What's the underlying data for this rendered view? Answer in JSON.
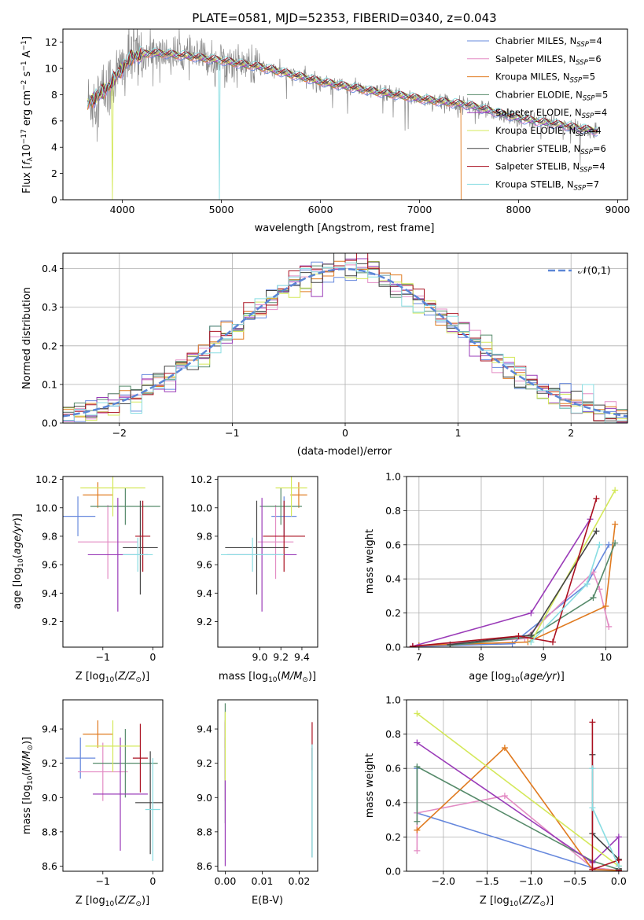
{
  "colors": {
    "Chabrier MILES": "#6688dd",
    "Salpeter MILES": "#e38cc4",
    "Kroupa MILES": "#e07a1f",
    "Chabrier ELODIE": "#568a6a",
    "Salpeter ELODIE": "#9a3bb8",
    "Kroupa ELODIE": "#d4e85a",
    "Chabrier STELIB": "#444444",
    "Salpeter STELIB": "#aa1020",
    "Kroupa STELIB": "#88dde2",
    "data": "#888888",
    "normal": "#5b86d6"
  },
  "chart_data": [
    {
      "id": "spectrum",
      "type": "line",
      "title": "PLATE=0581, MJD=52353, FIBERID=0340, z=0.043",
      "xlabel": "wavelength [Angstrom, rest frame]",
      "ylabel": "Flux [f_λ10^-17 erg cm^-2 s^-1 A^-1]",
      "xlim": [
        3400,
        9100
      ],
      "ylim": [
        0,
        13
      ],
      "xticks": [
        4000,
        5000,
        6000,
        7000,
        8000,
        9000
      ],
      "yticks": [
        0,
        2,
        4,
        6,
        8,
        10,
        12
      ],
      "legend": "top-right",
      "legend_entries": [
        {
          "label": "Chabrier MILES, N",
          "sub": "SSP",
          "tail": "=4",
          "model": "Chabrier MILES"
        },
        {
          "label": "Salpeter MILES, N",
          "sub": "SSP",
          "tail": "=6",
          "model": "Salpeter MILES"
        },
        {
          "label": "Kroupa MILES, N",
          "sub": "SSP",
          "tail": "=5",
          "model": "Kroupa MILES"
        },
        {
          "label": "Chabrier ELODIE, N",
          "sub": "SSP",
          "tail": "=5",
          "model": "Chabrier ELODIE"
        },
        {
          "label": "Salpeter ELODIE, N",
          "sub": "SSP",
          "tail": "=4",
          "model": "Salpeter ELODIE"
        },
        {
          "label": "Kroupa ELODIE, N",
          "sub": "SSP",
          "tail": "=4",
          "model": "Kroupa ELODIE"
        },
        {
          "label": "Chabrier STELIB, N",
          "sub": "SSP",
          "tail": "=6",
          "model": "Chabrier STELIB"
        },
        {
          "label": "Salpeter STELIB, N",
          "sub": "SSP",
          "tail": "=4",
          "model": "Salpeter STELIB"
        },
        {
          "label": "Kroupa STELIB, N",
          "sub": "SSP",
          "tail": "=7",
          "model": "Kroupa STELIB"
        }
      ],
      "continuum": [
        [
          3650,
          7.3
        ],
        [
          3850,
          8.5
        ],
        [
          4000,
          10.0
        ],
        [
          4100,
          10.9
        ],
        [
          4300,
          11.2
        ],
        [
          4600,
          11.0
        ],
        [
          5000,
          10.6
        ],
        [
          5400,
          10.1
        ],
        [
          6000,
          9.0
        ],
        [
          6500,
          8.3
        ],
        [
          7000,
          7.7
        ],
        [
          7500,
          7.2
        ],
        [
          8000,
          6.2
        ],
        [
          8500,
          5.6
        ],
        [
          8800,
          5.2
        ]
      ],
      "drops": [
        {
          "x": 3900,
          "to": 0,
          "model": "Kroupa ELODIE"
        },
        {
          "x": 4980,
          "to": 0,
          "model": "Kroupa STELIB"
        },
        {
          "x": 6800,
          "to": 0,
          "model": "Kroupa ELODIE"
        },
        {
          "x": 7420,
          "to": 0,
          "model": "Kroupa MILES"
        }
      ]
    },
    {
      "id": "residuals",
      "type": "line",
      "xlabel": "(data-model)/error",
      "ylabel": "Normed distribution",
      "xlim": [
        -2.5,
        2.5
      ],
      "ylim": [
        0,
        0.44
      ],
      "xticks": [
        -2,
        -1,
        0,
        1,
        2
      ],
      "yticks": [
        0.0,
        0.1,
        0.2,
        0.3,
        0.4
      ],
      "grid": true,
      "legend": "top-right",
      "legend_label": "𝒩(0,1)",
      "bin_width": 0.1
    },
    {
      "id": "age-vs-z",
      "type": "scatter",
      "xlabel": "Z [log10(Z/Z⊙)]",
      "ylabel": "age [log10(age/yr)]",
      "xlim": [
        -1.8,
        0.2
      ],
      "ylim": [
        9.02,
        10.22
      ],
      "xticks": [
        -1,
        0
      ],
      "yticks": [
        9.2,
        9.4,
        9.6,
        9.8,
        10.0,
        10.2
      ],
      "points": [
        {
          "model": "Chabrier MILES",
          "x": -1.5,
          "xerr": 0.35,
          "y": 9.94,
          "yerr": 0.14
        },
        {
          "model": "Salpeter MILES",
          "x": -0.9,
          "xerr": 0.6,
          "y": 9.76,
          "yerr": 0.26
        },
        {
          "model": "Kroupa MILES",
          "x": -1.1,
          "xerr": 0.3,
          "y": 10.09,
          "yerr": 0.09
        },
        {
          "model": "Chabrier ELODIE",
          "x": -0.55,
          "xerr": 0.7,
          "y": 10.01,
          "yerr": 0.13
        },
        {
          "model": "Salpeter ELODIE",
          "x": -0.7,
          "xerr": 0.6,
          "y": 9.67,
          "yerr": 0.4
        },
        {
          "model": "Kroupa ELODIE",
          "x": -0.8,
          "xerr": 0.65,
          "y": 10.14,
          "yerr": 0.2
        },
        {
          "model": "Chabrier STELIB",
          "x": -0.25,
          "xerr": 0.35,
          "y": 9.72,
          "yerr": 0.33
        },
        {
          "model": "Salpeter STELIB",
          "x": -0.2,
          "xerr": 0.15,
          "y": 9.8,
          "yerr": 0.25
        },
        {
          "model": "Kroupa STELIB",
          "x": -0.3,
          "xerr": 0.3,
          "y": 9.67,
          "yerr": 0.12
        }
      ]
    },
    {
      "id": "age-vs-mass",
      "type": "scatter",
      "xlabel": "mass [log10(M/M⊙)]",
      "ylabel": "",
      "xlim": [
        8.6,
        9.55
      ],
      "ylim": [
        9.02,
        10.22
      ],
      "xticks": [
        9.0,
        9.2,
        9.4
      ],
      "yticks": [
        9.2,
        9.4,
        9.6,
        9.8,
        10.0,
        10.2
      ],
      "points": [
        {
          "model": "Chabrier MILES",
          "x": 9.23,
          "xerr": 0.12,
          "y": 9.94,
          "yerr": 0.14
        },
        {
          "model": "Salpeter MILES",
          "x": 9.15,
          "xerr": 0.17,
          "y": 9.76,
          "yerr": 0.26
        },
        {
          "model": "Kroupa MILES",
          "x": 9.37,
          "xerr": 0.08,
          "y": 10.09,
          "yerr": 0.09
        },
        {
          "model": "Chabrier ELODIE",
          "x": 9.2,
          "xerr": 0.2,
          "y": 10.01,
          "yerr": 0.13
        },
        {
          "model": "Salpeter ELODIE",
          "x": 9.02,
          "xerr": 0.33,
          "y": 9.67,
          "yerr": 0.4
        },
        {
          "model": "Kroupa ELODIE",
          "x": 9.3,
          "xerr": 0.15,
          "y": 10.14,
          "yerr": 0.2
        },
        {
          "model": "Chabrier STELIB",
          "x": 8.97,
          "xerr": 0.3,
          "y": 9.72,
          "yerr": 0.33
        },
        {
          "model": "Salpeter STELIB",
          "x": 9.23,
          "xerr": 0.2,
          "y": 9.8,
          "yerr": 0.25
        },
        {
          "model": "Kroupa STELIB",
          "x": 8.93,
          "xerr": 0.3,
          "y": 9.67,
          "yerr": 0.12
        }
      ]
    },
    {
      "id": "mass-weight-vs-age",
      "type": "line",
      "xlabel": "age [log10(age/yr)]",
      "ylabel": "mass weight",
      "xlim": [
        6.8,
        10.35
      ],
      "ylim": [
        0,
        1.0
      ],
      "xticks": [
        7,
        8,
        9,
        10
      ],
      "yticks": [
        0.0,
        0.2,
        0.4,
        0.6,
        0.8,
        1.0
      ],
      "grid": true,
      "series": [
        {
          "model": "Chabrier MILES",
          "points": [
            [
              7.0,
              0.005
            ],
            [
              8.5,
              0.02
            ],
            [
              9.7,
              0.37
            ],
            [
              10.05,
              0.6
            ]
          ]
        },
        {
          "model": "Salpeter MILES",
          "points": [
            [
              6.9,
              0.005
            ],
            [
              8.7,
              0.05
            ],
            [
              9.8,
              0.44
            ],
            [
              9.9,
              0.34
            ],
            [
              10.05,
              0.12
            ]
          ]
        },
        {
          "model": "Kroupa MILES",
          "points": [
            [
              7.0,
              0.01
            ],
            [
              8.75,
              0.03
            ],
            [
              10.0,
              0.24
            ],
            [
              10.15,
              0.72
            ]
          ]
        },
        {
          "model": "Chabrier ELODIE",
          "points": [
            [
              7.5,
              0.01
            ],
            [
              8.8,
              0.06
            ],
            [
              9.8,
              0.29
            ],
            [
              10.15,
              0.61
            ]
          ]
        },
        {
          "model": "Salpeter ELODIE",
          "points": [
            [
              6.9,
              0.005
            ],
            [
              8.8,
              0.2
            ],
            [
              9.75,
              0.75
            ]
          ]
        },
        {
          "model": "Kroupa ELODIE",
          "points": [
            [
              8.8,
              0.03
            ],
            [
              10.15,
              0.92
            ]
          ]
        },
        {
          "model": "Chabrier STELIB",
          "points": [
            [
              7.5,
              0.015
            ],
            [
              8.8,
              0.07
            ],
            [
              9.85,
              0.68
            ]
          ]
        },
        {
          "model": "Salpeter STELIB",
          "points": [
            [
              6.9,
              0.005
            ],
            [
              8.6,
              0.065
            ],
            [
              9.15,
              0.03
            ],
            [
              9.85,
              0.87
            ]
          ]
        },
        {
          "model": "Kroupa STELIB",
          "points": [
            [
              8.8,
              0.03
            ],
            [
              9.7,
              0.37
            ],
            [
              9.9,
              0.6
            ]
          ]
        }
      ]
    },
    {
      "id": "mass-vs-z",
      "type": "scatter",
      "xlabel": "Z [log10(Z/Z⊙)]",
      "ylabel": "mass [log10(M/M⊙)]",
      "xlim": [
        -1.8,
        0.2
      ],
      "ylim": [
        8.57,
        9.57
      ],
      "xticks": [
        -1,
        0
      ],
      "yticks": [
        8.6,
        8.8,
        9.0,
        9.2,
        9.4
      ],
      "points": [
        {
          "model": "Chabrier MILES",
          "x": -1.45,
          "xerr": 0.3,
          "y": 9.23,
          "yerr": 0.12
        },
        {
          "model": "Salpeter MILES",
          "x": -1.0,
          "xerr": 0.5,
          "y": 9.15,
          "yerr": 0.17
        },
        {
          "model": "Kroupa MILES",
          "x": -1.1,
          "xerr": 0.3,
          "y": 9.37,
          "yerr": 0.08
        },
        {
          "model": "Chabrier ELODIE",
          "x": -0.55,
          "xerr": 0.65,
          "y": 9.2,
          "yerr": 0.2
        },
        {
          "model": "Salpeter ELODIE",
          "x": -0.65,
          "xerr": 0.55,
          "y": 9.02,
          "yerr": 0.33
        },
        {
          "model": "Kroupa ELODIE",
          "x": -0.8,
          "xerr": 0.55,
          "y": 9.3,
          "yerr": 0.15
        },
        {
          "model": "Chabrier STELIB",
          "x": -0.05,
          "xerr": 0.3,
          "y": 8.97,
          "yerr": 0.3
        },
        {
          "model": "Salpeter STELIB",
          "x": -0.25,
          "xerr": 0.15,
          "y": 9.23,
          "yerr": 0.2
        },
        {
          "model": "Kroupa STELIB",
          "x": 0.0,
          "xerr": 0.15,
          "y": 8.93,
          "yerr": 0.3
        }
      ]
    },
    {
      "id": "mass-vs-ebv",
      "type": "scatter",
      "xlabel": "E(B-V)",
      "ylabel": "",
      "xlim": [
        -0.002,
        0.025
      ],
      "ylim": [
        8.57,
        9.57
      ],
      "xticks": [
        0.0,
        0.01,
        0.02
      ],
      "yticks": [
        8.6,
        8.8,
        9.0,
        9.2,
        9.4
      ],
      "points": [
        {
          "model": "Chabrier MILES",
          "x": 0.0,
          "y": 9.23,
          "yerr": 0.12
        },
        {
          "model": "Salpeter MILES",
          "x": 0.0,
          "y": 9.15,
          "yerr": 0.17
        },
        {
          "model": "Kroupa MILES",
          "x": 0.0,
          "y": 9.37,
          "yerr": 0.08
        },
        {
          "model": "Chabrier ELODIE",
          "x": 0.0,
          "y": 9.2,
          "yerr": 0.35
        },
        {
          "model": "Salpeter ELODIE",
          "x": 0.0,
          "y": 9.02,
          "yerr": 0.42
        },
        {
          "model": "Kroupa ELODIE",
          "x": 0.0,
          "y": 9.3,
          "yerr": 0.2
        },
        {
          "model": "Chabrier STELIB",
          "x": 0.0235,
          "y": 8.97,
          "yerr": 0.32
        },
        {
          "model": "Salpeter STELIB",
          "x": 0.0235,
          "y": 9.3,
          "yerr": 0.14
        },
        {
          "model": "Kroupa STELIB",
          "x": 0.0235,
          "y": 8.98,
          "yerr": 0.33
        }
      ]
    },
    {
      "id": "mass-weight-vs-z",
      "type": "line",
      "xlabel": "Z [log10(Z/Z⊙)]",
      "ylabel": "mass weight",
      "xlim": [
        -2.42,
        0.1
      ],
      "ylim": [
        0,
        1.0
      ],
      "xticks": [
        -2.0,
        -1.5,
        -1.0,
        -0.5,
        0.0
      ],
      "yticks": [
        0.0,
        0.2,
        0.4,
        0.6,
        0.8,
        1.0
      ],
      "grid": true,
      "series": [
        {
          "model": "Chabrier MILES",
          "points": [
            [
              -2.3,
              0.6
            ],
            [
              -2.3,
              0.34
            ],
            [
              -0.3,
              0.02
            ],
            [
              0.0,
              0.005
            ]
          ]
        },
        {
          "model": "Salpeter MILES",
          "points": [
            [
              -2.3,
              0.12
            ],
            [
              -2.3,
              0.34
            ],
            [
              -1.3,
              0.44
            ],
            [
              -0.3,
              0.02
            ],
            [
              0.0,
              0.005
            ]
          ]
        },
        {
          "model": "Kroupa MILES",
          "points": [
            [
              -2.3,
              0.24
            ],
            [
              -1.3,
              0.72
            ],
            [
              -0.3,
              0.01
            ],
            [
              0.0,
              0.005
            ]
          ]
        },
        {
          "model": "Chabrier ELODIE",
          "points": [
            [
              -2.3,
              0.29
            ],
            [
              -2.3,
              0.61
            ],
            [
              -0.3,
              0.06
            ],
            [
              0.0,
              0.01
            ]
          ]
        },
        {
          "model": "Salpeter ELODIE",
          "points": [
            [
              -2.3,
              0.75
            ],
            [
              -0.3,
              0.05
            ],
            [
              0.0,
              0.2
            ],
            [
              0.0,
              0.0
            ]
          ]
        },
        {
          "model": "Kroupa ELODIE",
          "points": [
            [
              -2.3,
              0.92
            ],
            [
              0.0,
              0.03
            ]
          ]
        },
        {
          "model": "Chabrier STELIB",
          "points": [
            [
              -0.3,
              0.68
            ],
            [
              -0.3,
              0.22
            ],
            [
              0.0,
              0.07
            ],
            [
              0.0,
              0.015
            ]
          ]
        },
        {
          "model": "Salpeter STELIB",
          "points": [
            [
              -0.3,
              0.87
            ],
            [
              -0.3,
              0.01
            ],
            [
              0.0,
              0.065
            ],
            [
              0.0,
              0.005
            ]
          ]
        },
        {
          "model": "Kroupa STELIB",
          "points": [
            [
              -0.3,
              0.6
            ],
            [
              -0.3,
              0.37
            ],
            [
              0.0,
              0.03
            ]
          ]
        }
      ]
    }
  ]
}
